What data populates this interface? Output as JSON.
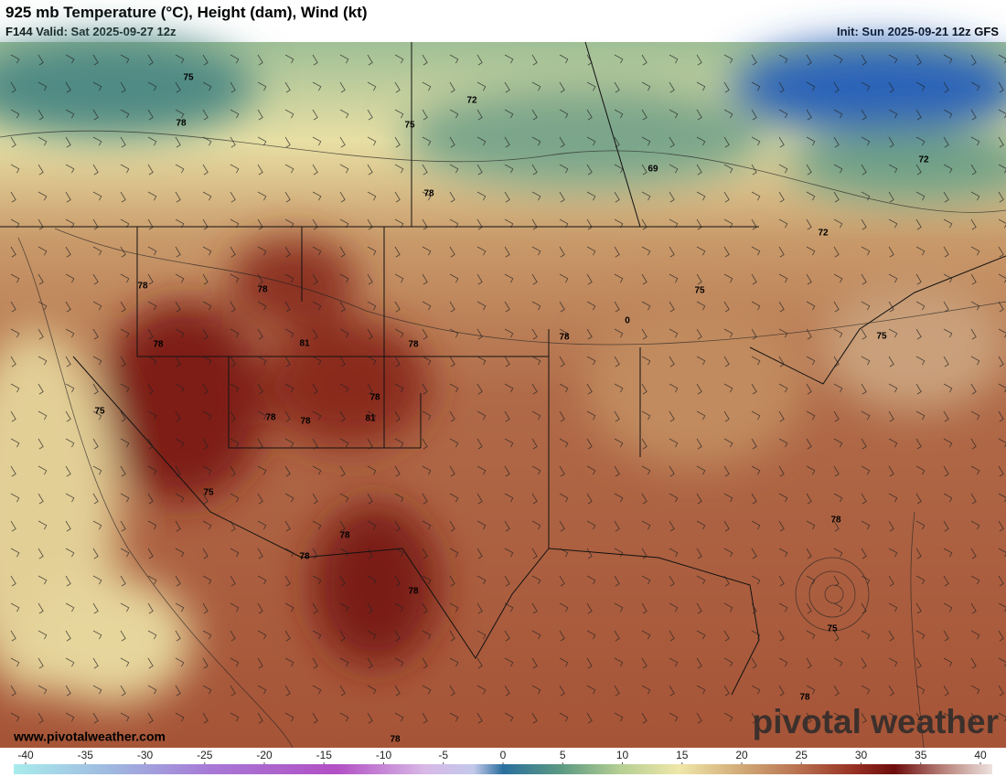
{
  "header": {
    "title": "925 mb Temperature (°C), Height (dam), Wind (kt)",
    "valid": "F144 Valid: Sat 2025-09-27 12z",
    "init": "Init: Sun 2025-09-21 12z GFS"
  },
  "map": {
    "contour_labels": [
      "75",
      "78",
      "72",
      "75",
      "69",
      "78",
      "72",
      "72",
      "78",
      "78",
      "75",
      "78",
      "81",
      "78",
      "78",
      "0",
      "75",
      "75",
      "78",
      "78",
      "78",
      "81",
      "75",
      "78",
      "78",
      "78",
      "78",
      "75",
      "78",
      "78"
    ]
  },
  "colorbar": {
    "ticks": [
      -40,
      -35,
      -30,
      -25,
      -20,
      -15,
      -10,
      -5,
      0,
      5,
      10,
      15,
      20,
      25,
      30,
      35,
      40
    ]
  },
  "footer": {
    "website": "www.pivotalweather.com",
    "watermark": "pivotal weather"
  }
}
